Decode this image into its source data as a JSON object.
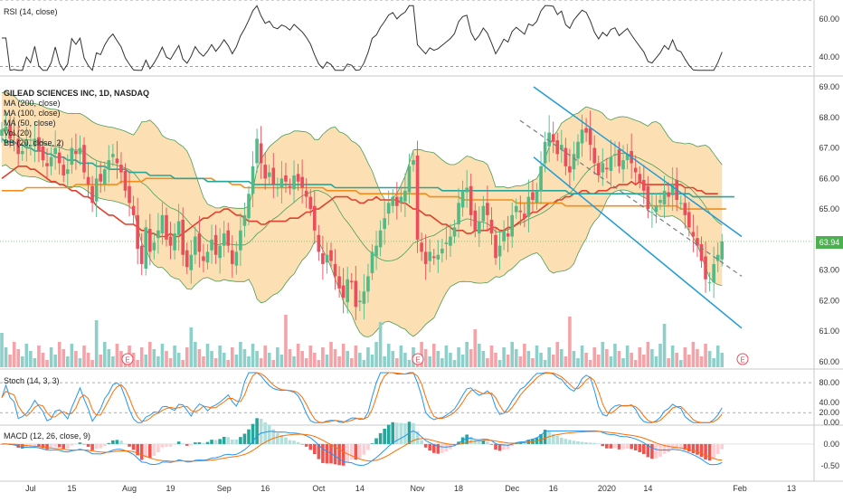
{
  "chart_data": {
    "type": "candlestick",
    "title": "GILEAD SCIENCES INC, 1D, NASDAQ",
    "indicator_labels": {
      "rsi": "RSI (14, close)",
      "ma200": "MA (200, close)",
      "ma100": "MA (100, close)",
      "ma50": "MA (50, close)",
      "vol": "Vol (20)",
      "bb": "BB (20, close, 2)",
      "stoch": "Stoch (14, 3, 3)",
      "macd": "MACD (12, 26, close, 9)"
    },
    "last_price": "63.94",
    "x_ticks": [
      "Jul",
      "15",
      "Aug",
      "19",
      "Sep",
      "16",
      "Oct",
      "14",
      "Nov",
      "18",
      "Dec",
      "16",
      "2020",
      "14",
      "Feb",
      "13"
    ],
    "price_axis": {
      "ylim": [
        60.0,
        69.0
      ],
      "ticks": [
        "69.00",
        "68.00",
        "67.00",
        "66.00",
        "65.00",
        "64.00",
        "63.00",
        "62.00",
        "61.00",
        "60.00"
      ]
    },
    "rsi_axis": {
      "ylim": [
        30,
        70
      ],
      "ticks": [
        "60.00",
        "40.00"
      ]
    },
    "stoch_axis": {
      "ylim": [
        -5,
        100
      ],
      "ticks": [
        "80.00",
        "40.00",
        "20.00",
        "0.00"
      ]
    },
    "macd_axis": {
      "ylim": [
        -0.85,
        0.35
      ],
      "ticks": [
        "0.00",
        "-0.50"
      ]
    },
    "earnings_marker": "E",
    "closes": [
      67.6,
      67.7,
      67.3,
      67.4,
      66.8,
      66.9,
      67.2,
      67.1,
      67.3,
      66.9,
      66.6,
      66.4,
      66.7,
      67.0,
      66.5,
      66.1,
      66.3,
      67.0,
      66.8,
      67.0,
      66.2,
      65.8,
      65.2,
      66.0,
      65.9,
      66.3,
      66.6,
      66.8,
      66.5,
      66.2,
      65.6,
      65.2,
      64.8,
      63.7,
      63.2,
      64.4,
      63.6,
      63.9,
      64.3,
      64.8,
      64.0,
      63.8,
      64.2,
      64.6,
      63.5,
      63.1,
      63.5,
      64.1,
      63.6,
      63.3,
      63.6,
      64.0,
      63.5,
      63.8,
      64.2,
      63.8,
      63.2,
      63.6,
      64.3,
      64.8,
      65.5,
      66.4,
      67.3,
      66.5,
      66.0,
      66.2,
      65.8,
      65.7,
      66.0,
      65.9,
      65.7,
      66.1,
      65.9,
      65.7,
      65.4,
      65.0,
      64.3,
      63.6,
      63.2,
      63.5,
      63.3,
      62.8,
      62.4,
      62.1,
      62.7,
      62.6,
      61.8,
      62.0,
      62.3,
      62.8,
      63.6,
      63.8,
      64.3,
      64.7,
      65.2,
      65.4,
      65.1,
      65.4,
      65.6,
      66.4,
      66.6,
      64.0,
      63.6,
      63.2,
      63.6,
      63.4,
      63.5,
      63.7,
      63.9,
      64.1,
      64.4,
      65.2,
      65.6,
      65.7,
      64.8,
      64.3,
      64.6,
      65.1,
      64.8,
      64.2,
      63.4,
      63.8,
      64.3,
      64.1,
      64.8,
      65.1,
      64.9,
      64.7,
      65.4,
      65.3,
      65.6,
      66.4,
      67.2,
      67.5,
      67.2,
      66.8,
      67.1,
      66.4,
      66.2,
      66.8,
      67.2,
      67.6,
      67.5,
      67.1,
      66.5,
      66.1,
      66.5,
      66.3,
      66.7,
      66.8,
      66.4,
      66.6,
      66.8,
      66.5,
      66.2,
      65.9,
      65.6,
      65.0,
      64.9,
      65.1,
      65.3,
      65.6,
      65.4,
      65.8,
      65.3,
      65.2,
      64.8,
      64.4,
      64.1,
      63.8,
      63.3,
      62.7,
      62.6,
      63.2,
      63.5,
      63.94
    ],
    "series": [
      {
        "name": "MA (50, close)",
        "values": [
          66.0,
          66.1,
          66.2,
          66.3,
          66.4,
          66.4,
          66.4,
          66.3,
          66.3,
          66.2,
          66.1,
          66.0,
          65.9,
          65.9,
          65.8,
          65.8,
          65.7,
          65.6,
          65.6,
          65.5,
          65.4,
          65.4,
          65.3,
          65.1,
          65.0,
          64.9,
          64.8,
          64.8,
          64.7,
          64.6,
          64.5,
          64.5,
          64.5,
          64.4,
          64.3,
          64.3,
          64.2,
          64.2,
          64.1,
          64.1,
          64.1,
          64.2,
          64.1,
          64.1,
          64.2,
          64.3,
          64.4,
          64.5,
          64.6,
          64.7,
          64.7,
          64.8,
          64.9,
          64.9,
          65.0,
          65.0,
          64.9,
          64.8,
          64.8,
          64.7,
          64.6,
          64.6,
          64.6,
          64.5,
          64.5,
          64.6,
          64.6,
          64.6,
          64.6,
          64.6,
          64.7,
          64.7,
          64.7,
          64.8,
          64.9,
          64.9,
          65.0,
          65.0,
          65.1,
          65.2,
          65.3,
          65.4,
          65.4,
          65.4,
          65.4,
          65.3,
          65.3,
          65.2,
          65.2,
          65.3,
          65.3,
          65.4,
          65.3,
          65.3,
          65.3,
          65.3,
          65.3,
          65.2,
          65.2,
          65.1,
          65.0,
          65.0,
          64.9,
          64.8,
          64.8,
          64.7,
          64.6,
          64.5,
          64.5,
          64.4,
          64.3,
          64.3,
          64.3,
          64.2,
          64.2,
          64.3,
          64.3,
          64.3,
          64.3,
          64.4,
          64.4,
          64.3,
          64.3,
          64.4,
          64.4,
          64.5,
          64.6,
          64.7,
          64.8,
          64.9,
          64.9,
          65.0,
          65.1,
          65.2,
          65.2,
          65.3,
          65.3,
          65.4,
          65.4,
          65.5,
          65.5,
          65.6,
          65.6,
          65.5,
          65.5,
          65.6,
          65.6,
          65.6,
          65.7,
          65.7,
          65.8,
          65.8,
          65.8,
          65.9,
          65.8,
          65.9,
          65.8,
          65.8,
          65.8,
          65.8,
          65.8,
          65.8,
          65.8,
          65.8,
          65.8,
          65.8,
          65.7,
          65.7,
          65.7,
          65.6,
          65.6,
          65.5,
          65.5,
          65.5,
          65.5
        ]
      },
      {
        "name": "MA (100, close)",
        "values": [
          65.6,
          65.6,
          65.6,
          65.6,
          65.6,
          65.6,
          65.7,
          65.7,
          65.7,
          65.7,
          65.7,
          65.7,
          65.7,
          65.7,
          65.7,
          65.7,
          65.7,
          65.7,
          65.8,
          65.8,
          65.8,
          65.8,
          65.8,
          65.8,
          65.8,
          65.8,
          65.8,
          65.8,
          65.8,
          65.9,
          65.9,
          65.9,
          65.9,
          65.9,
          65.9,
          66.0,
          66.0,
          66.0,
          66.0,
          66.0,
          66.0,
          66.0,
          66.0,
          66.0,
          66.0,
          66.0,
          66.0,
          66.0,
          66.0,
          66.0,
          66.0,
          66.0,
          65.9,
          65.9,
          65.9,
          65.9,
          65.8,
          65.8,
          65.8,
          65.7,
          65.7,
          65.7,
          65.7,
          65.7,
          65.7,
          65.7,
          65.7,
          65.7,
          65.7,
          65.7,
          65.7,
          65.7,
          65.7,
          65.7,
          65.7,
          65.7,
          65.7,
          65.7,
          65.7,
          65.6,
          65.6,
          65.6,
          65.6,
          65.6,
          65.6,
          65.6,
          65.6,
          65.5,
          65.5,
          65.5,
          65.5,
          65.5,
          65.5,
          65.5,
          65.5,
          65.5,
          65.5,
          65.5,
          65.5,
          65.5,
          65.5,
          65.5,
          65.5,
          65.5,
          65.4,
          65.4,
          65.4,
          65.4,
          65.4,
          65.4,
          65.4,
          65.4,
          65.3,
          65.3,
          65.3,
          65.3,
          65.3,
          65.3,
          65.3,
          65.3,
          65.3,
          65.3,
          65.3,
          65.3,
          65.3,
          65.2,
          65.2,
          65.2,
          65.2,
          65.2,
          65.2,
          65.2,
          65.2,
          65.2,
          65.2,
          65.2,
          65.2,
          65.1,
          65.1,
          65.1,
          65.1,
          65.1,
          65.1,
          65.1,
          65.1,
          65.1,
          65.1,
          65.1,
          65.1,
          65.1,
          65.1,
          65.1,
          65.1,
          65.1,
          65.1,
          65.1,
          65.1,
          65.1,
          65.1,
          65.1,
          65.1,
          65.1,
          65.1,
          65.1,
          65.1,
          65.0,
          65.0,
          65.0,
          65.0,
          65.0,
          65.0,
          65.0,
          65.0,
          65.0,
          65.0,
          65.0,
          65.0
        ]
      },
      {
        "name": "MA (200, close)",
        "values": [
          67.3,
          67.2,
          67.2,
          67.2,
          67.1,
          67.1,
          67.0,
          67.0,
          66.9,
          66.9,
          66.9,
          66.8,
          66.8,
          66.7,
          66.7,
          66.7,
          66.6,
          66.6,
          66.6,
          66.5,
          66.5,
          66.5,
          66.5,
          66.4,
          66.4,
          66.4,
          66.3,
          66.3,
          66.3,
          66.3,
          66.3,
          66.2,
          66.2,
          66.2,
          66.2,
          66.2,
          66.1,
          66.1,
          66.1,
          66.1,
          66.1,
          66.1,
          66.0,
          66.0,
          66.0,
          66.0,
          66.0,
          66.0,
          66.0,
          66.0,
          65.9,
          65.9,
          65.9,
          65.9,
          65.9,
          65.9,
          65.9,
          65.9,
          65.9,
          65.9,
          65.9,
          65.8,
          65.8,
          65.8,
          65.8,
          65.8,
          65.8,
          65.8,
          65.8,
          65.8,
          65.8,
          65.8,
          65.8,
          65.8,
          65.8,
          65.8,
          65.8,
          65.8,
          65.8,
          65.8,
          65.8,
          65.7,
          65.7,
          65.7,
          65.7,
          65.7,
          65.7,
          65.7,
          65.7,
          65.7,
          65.7,
          65.7,
          65.7,
          65.7,
          65.7,
          65.7,
          65.7,
          65.7,
          65.7,
          65.7,
          65.7,
          65.7,
          65.7,
          65.7,
          65.7,
          65.7,
          65.7,
          65.6,
          65.6,
          65.6,
          65.6,
          65.6,
          65.6,
          65.6,
          65.6,
          65.6,
          65.6,
          65.6,
          65.6,
          65.6,
          65.6,
          65.6,
          65.6,
          65.6,
          65.6,
          65.6,
          65.6,
          65.6,
          65.6,
          65.6,
          65.6,
          65.6,
          65.6,
          65.6,
          65.6,
          65.6,
          65.6,
          65.6,
          65.5,
          65.5,
          65.5,
          65.5,
          65.5,
          65.5,
          65.5,
          65.5,
          65.5,
          65.5,
          65.5,
          65.5,
          65.5,
          65.5,
          65.5,
          65.5,
          65.5,
          65.5,
          65.5,
          65.5,
          65.5,
          65.5,
          65.5,
          65.5,
          65.5,
          65.5,
          65.5,
          65.5,
          65.5,
          65.5,
          65.4,
          65.4,
          65.4,
          65.4,
          65.4,
          65.4,
          65.4,
          65.4,
          65.4,
          65.4,
          65.4
        ]
      }
    ],
    "colors": {
      "up": "#53b987",
      "down": "#eb4d5c",
      "up_vol": "#8fcfc9",
      "down_vol": "#f4a3a8",
      "bb_fill": "#fbd9a6",
      "bb_line": "#4a9d55",
      "ma50": "#e0402c",
      "ma100": "#f28e1c",
      "ma200": "#26a69a",
      "channel": "#1e9bd7",
      "osc_blue": "#2196f3",
      "osc_orange": "#ff6d00",
      "macd_pos": "#26a69a",
      "macd_pos_light": "#b2dfdb",
      "macd_neg": "#ef5350",
      "macd_neg_light": "#ffcdd2"
    }
  }
}
